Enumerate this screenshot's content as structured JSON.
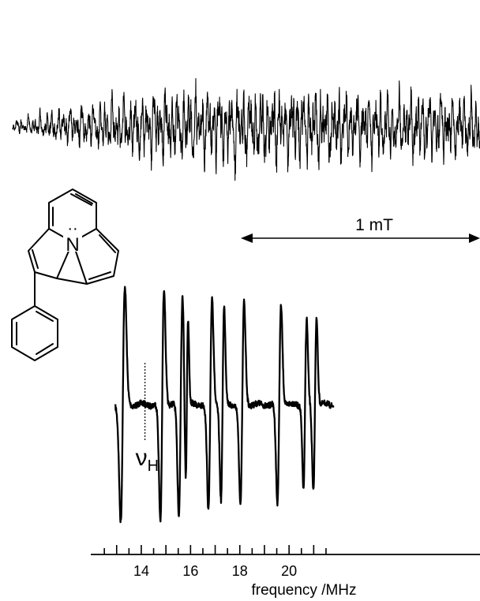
{
  "chart_data": [
    {
      "type": "line",
      "panel": "EPR spectrum",
      "title": "",
      "xlabel": "",
      "ylabel": "",
      "scale_bar": {
        "label": "1 mT",
        "arrows": "both"
      },
      "series": [
        {
          "name": "",
          "description_kind": "derivative EPR signal, dense hyperfine pattern"
        }
      ]
    },
    {
      "type": "line",
      "panel": "ENDOR spectrum",
      "title": "",
      "xlabel": "frequency /MHz",
      "ylabel": "",
      "xlim": [
        12.9,
        21.8
      ],
      "xticks": [
        14,
        16,
        18,
        20
      ],
      "x_tick_labels": [
        "14",
        "16",
        "18",
        "20"
      ],
      "minor_tick_step": 0.5,
      "grid": false,
      "marker": {
        "label_main": "ν",
        "label_sub": "H",
        "x": 14.15
      },
      "lines": [
        {
          "x": 13.25,
          "amplitude": 1.0,
          "width": 0.085
        },
        {
          "x": 14.85,
          "amplitude": 1.0,
          "width": 0.075
        },
        {
          "x": 15.6,
          "amplitude": 0.95,
          "width": 0.075
        },
        {
          "x": 15.85,
          "amplitude": 0.72,
          "width": 0.05
        },
        {
          "x": 16.8,
          "amplitude": 0.92,
          "width": 0.075
        },
        {
          "x": 17.3,
          "amplitude": 0.82,
          "width": 0.065
        },
        {
          "x": 18.1,
          "amplitude": 0.88,
          "width": 0.075
        },
        {
          "x": 19.6,
          "amplitude": 0.85,
          "width": 0.075
        },
        {
          "x": 20.65,
          "amplitude": 0.72,
          "width": 0.065
        },
        {
          "x": 21.05,
          "amplitude": 0.74,
          "width": 0.065
        }
      ]
    }
  ],
  "molecule": {
    "name": "1-phenylindolizinyl radical structure",
    "heteroatom_label": "N",
    "radical_dots": "··"
  }
}
